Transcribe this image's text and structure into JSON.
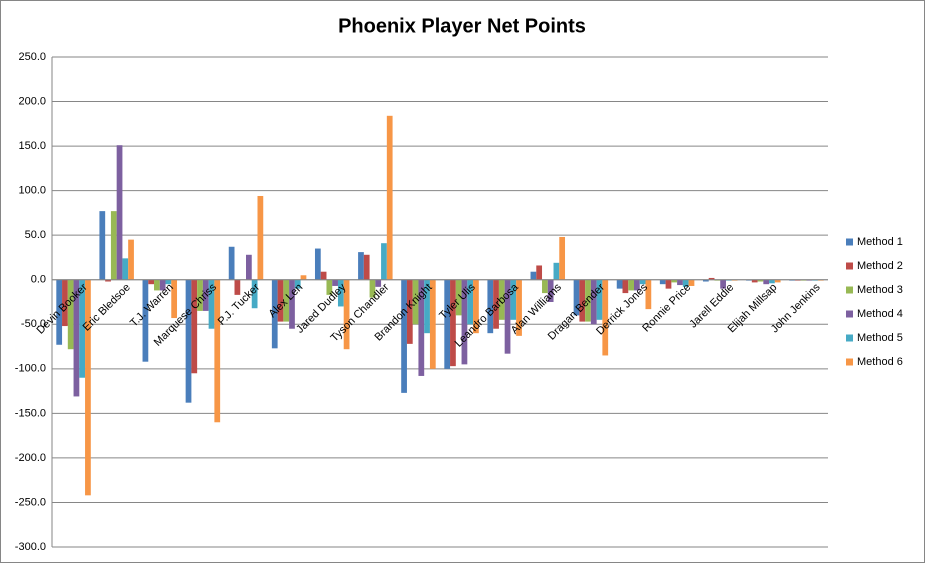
{
  "chart_data": {
    "type": "bar",
    "title": "Phoenix Player Net Points",
    "categories": [
      "Devin Booker",
      "Eric Bledsoe",
      "T.J. Warren",
      "Marquese Chriss",
      "P.J. Tucker",
      "Alex Len",
      "Jared Dudley",
      "Tyson Chandler",
      "Brandon Knight",
      "Tyler Ulis",
      "Leandro Barbosa",
      "Alan Williams",
      "Dragan Bender",
      "Derrick Jones",
      "Ronnie Price",
      "Jarell Eddie",
      "Elijah Millsap",
      "John Jenkins"
    ],
    "series": [
      {
        "name": "Method 1",
        "color": "#4a7ebb",
        "values": [
          -73,
          77,
          -92,
          -138,
          37,
          -77,
          35,
          31,
          -127,
          -100,
          -60,
          9,
          -40,
          -10,
          -5,
          -2,
          -1,
          -1
        ]
      },
      {
        "name": "Method 2",
        "color": "#be4b48",
        "values": [
          -52,
          -2,
          -5,
          -105,
          -17,
          -47,
          9,
          28,
          -72,
          -97,
          -55,
          16,
          -47,
          -15,
          -10,
          2,
          -3,
          -1
        ]
      },
      {
        "name": "Method 3",
        "color": "#98b954",
        "values": [
          -78,
          77,
          -12,
          -35,
          0,
          -47,
          -17,
          -20,
          -50,
          -40,
          -45,
          -15,
          -47,
          -12,
          -3,
          -1,
          -2,
          -1
        ]
      },
      {
        "name": "Method 4",
        "color": "#7d60a0",
        "values": [
          -131,
          151,
          -12,
          -35,
          28,
          -55,
          -7,
          -8,
          -108,
          -95,
          -83,
          -25,
          -50,
          -12,
          -6,
          -10,
          -5,
          -1
        ]
      },
      {
        "name": "Method 5",
        "color": "#46aac5",
        "values": [
          -110,
          24,
          -5,
          -55,
          -32,
          -10,
          -30,
          41,
          -60,
          -50,
          -45,
          19,
          -45,
          -5,
          -8,
          -1,
          -4,
          -1
        ]
      },
      {
        "name": "Method 6",
        "color": "#f79646",
        "values": [
          -242,
          45,
          -43,
          -160,
          94,
          5,
          -78,
          184,
          -100,
          -60,
          -63,
          48,
          -85,
          -33,
          -7,
          -1,
          -3,
          -1
        ]
      }
    ],
    "ylim": [
      -300,
      250
    ],
    "yticks": [
      {
        "value": -300,
        "label": "-300.0"
      },
      {
        "value": -250,
        "label": "-250.0"
      },
      {
        "value": -200,
        "label": "-200.0"
      },
      {
        "value": -150,
        "label": "-150.0"
      },
      {
        "value": -100,
        "label": "-100.0"
      },
      {
        "value": -50,
        "label": "-50.0"
      },
      {
        "value": 0,
        "label": "0.0"
      },
      {
        "value": 50,
        "label": "50.0"
      },
      {
        "value": 100,
        "label": "100.0"
      },
      {
        "value": 150,
        "label": "150.0"
      },
      {
        "value": 200,
        "label": "200.0"
      },
      {
        "value": 250,
        "label": "250.0"
      }
    ],
    "grid": true,
    "legend": "right"
  }
}
